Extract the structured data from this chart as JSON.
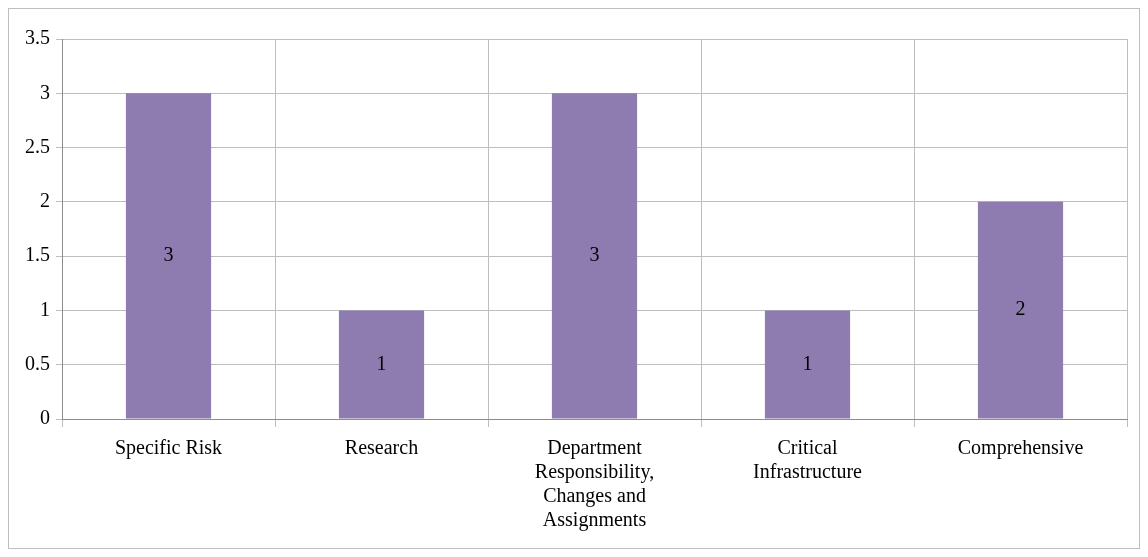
{
  "chart_data": {
    "type": "bar",
    "categories": [
      "Specific Risk",
      "Research",
      "Department Responsibility, Changes and Assignments",
      "Critical Infrastructure",
      "Comprehensive"
    ],
    "values": [
      3,
      1,
      3,
      1,
      2
    ],
    "color": "#8e7cb1",
    "ylim": [
      0,
      3.5
    ],
    "yticks": [
      0,
      0.5,
      1,
      1.5,
      2,
      2.5,
      3,
      3.5
    ],
    "grid": true,
    "legend": false,
    "data_labels": true
  }
}
